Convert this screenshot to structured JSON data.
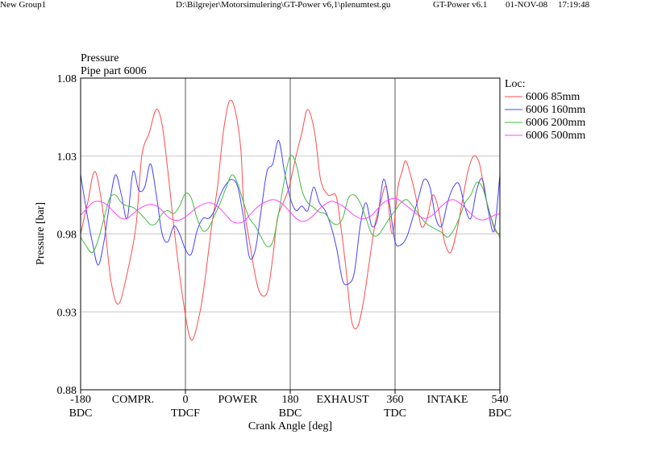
{
  "header": {
    "group": "New Group1",
    "file": "D:\\Bilgrejer\\Motorsimulering\\GT-Power v6,1\\plenumtest.gu",
    "app": "GT-Power v6.1",
    "date": "01-NOV-08",
    "time": "17:19:48"
  },
  "chart_data": {
    "type": "line",
    "title": "Pressure",
    "subtitle": "Pipe part 6006",
    "xlabel": "Crank Angle [deg]",
    "ylabel": "Pressure [bar]",
    "xlim": [
      -180,
      540
    ],
    "ylim": [
      0.88,
      1.08
    ],
    "grid": true,
    "legend_title": "Loc:",
    "legend_position": "right",
    "y_ticks": [
      "1.08",
      "1.03",
      "0.98",
      "0.93",
      "0.88"
    ],
    "x_ticks": [
      {
        "x": -180,
        "value": "-180",
        "sub": "BDC"
      },
      {
        "x": 0,
        "value": "0",
        "sub": "TDCF"
      },
      {
        "x": 180,
        "value": "180",
        "sub": "BDC"
      },
      {
        "x": 360,
        "value": "360",
        "sub": "TDC"
      },
      {
        "x": 540,
        "value": "540",
        "sub": "BDC"
      }
    ],
    "stroke_labels": [
      {
        "x": -90,
        "text": "COMPR."
      },
      {
        "x": 90,
        "text": "POWER"
      },
      {
        "x": 270,
        "text": "EXHAUST"
      },
      {
        "x": 450,
        "text": "INTAKE"
      }
    ],
    "series": [
      {
        "name": "6006 85mm",
        "color": "#ff4c4c",
        "x": [
          -180,
          -168,
          -155,
          -140,
          -128,
          -115,
          -100,
          -85,
          -75,
          -62,
          -50,
          -40,
          -30,
          -20,
          -5,
          10,
          25,
          35,
          45,
          55,
          65,
          75,
          85,
          95,
          100,
          110,
          125,
          140,
          150,
          158,
          168,
          178,
          190,
          200,
          210,
          222,
          232,
          245,
          258,
          265,
          275,
          285,
          295,
          305,
          315,
          325,
          335,
          345,
          355,
          365,
          372,
          378,
          385,
          395,
          405,
          415,
          425,
          435,
          445,
          455,
          465,
          475,
          485,
          495,
          505,
          515,
          525,
          532,
          540
        ],
        "y": [
          0.98,
          1.0,
          1.02,
          0.99,
          0.95,
          0.935,
          0.955,
          0.985,
          1.03,
          1.045,
          1.06,
          1.05,
          1.02,
          0.985,
          0.94,
          0.912,
          0.93,
          0.955,
          0.985,
          1.01,
          1.045,
          1.065,
          1.06,
          1.035,
          1.0,
          0.975,
          0.945,
          0.942,
          0.965,
          0.99,
          1.0,
          1.01,
          1.03,
          1.045,
          1.06,
          1.045,
          1.015,
          1.005,
          1.005,
          0.99,
          0.96,
          0.925,
          0.92,
          0.935,
          0.96,
          0.985,
          1.0,
          1.01,
          0.98,
          1.01,
          1.02,
          1.027,
          1.02,
          1.005,
          0.985,
          0.99,
          1.005,
          0.995,
          0.975,
          0.968,
          0.98,
          1.0,
          1.02,
          1.03,
          1.025,
          1.005,
          0.99,
          0.982,
          0.98
        ]
      },
      {
        "name": "6006 160mm",
        "color": "#4444ff",
        "x": [
          -180,
          -170,
          -160,
          -150,
          -140,
          -130,
          -120,
          -110,
          -100,
          -90,
          -80,
          -70,
          -60,
          -50,
          -40,
          -30,
          -20,
          -10,
          0,
          10,
          20,
          30,
          40,
          50,
          60,
          70,
          80,
          90,
          100,
          110,
          120,
          130,
          140,
          150,
          160,
          170,
          180,
          190,
          200,
          210,
          220,
          230,
          240,
          250,
          260,
          270,
          280,
          290,
          300,
          310,
          320,
          330,
          340,
          350,
          360,
          370,
          380,
          390,
          400,
          410,
          420,
          430,
          440,
          450,
          460,
          470,
          480,
          490,
          500,
          510,
          520,
          530,
          540
        ],
        "y": [
          1.018,
          0.995,
          0.975,
          0.96,
          0.975,
          1.0,
          1.018,
          1.005,
          0.99,
          1.02,
          1.008,
          1.01,
          1.025,
          1.005,
          0.98,
          0.975,
          0.985,
          0.98,
          0.97,
          0.967,
          0.982,
          0.99,
          0.99,
          0.995,
          1.005,
          1.012,
          1.015,
          1.01,
          0.99,
          0.965,
          0.97,
          0.995,
          1.02,
          1.025,
          1.04,
          1.02,
          1.003,
          0.995,
          0.998,
          0.995,
          1.01,
          1.0,
          0.995,
          0.985,
          0.97,
          0.95,
          0.948,
          0.955,
          0.985,
          1.0,
          0.985,
          0.99,
          1.015,
          1.0,
          0.975,
          0.973,
          0.978,
          0.99,
          1.003,
          1.015,
          1.01,
          0.99,
          0.985,
          1.0,
          1.01,
          1.012,
          0.997,
          0.99,
          1.008,
          1.015,
          0.995,
          0.982,
          1.018
        ]
      },
      {
        "name": "6006 200mm",
        "color": "#44bb44",
        "x": [
          -180,
          -170,
          -160,
          -150,
          -140,
          -130,
          -120,
          -110,
          -100,
          -90,
          -80,
          -70,
          -60,
          -50,
          -40,
          -30,
          -20,
          -10,
          0,
          10,
          20,
          30,
          40,
          50,
          60,
          70,
          80,
          90,
          100,
          110,
          120,
          130,
          140,
          150,
          160,
          170,
          180,
          190,
          200,
          210,
          220,
          230,
          240,
          250,
          260,
          270,
          280,
          290,
          300,
          310,
          320,
          330,
          340,
          350,
          360,
          370,
          380,
          390,
          400,
          410,
          420,
          430,
          440,
          450,
          460,
          470,
          480,
          490,
          500,
          510,
          520,
          530,
          540
        ],
        "y": [
          0.978,
          0.972,
          0.968,
          0.976,
          0.99,
          1.003,
          1.005,
          1.0,
          0.998,
          0.997,
          0.994,
          0.99,
          0.986,
          0.987,
          0.993,
          0.995,
          0.993,
          0.998,
          1.006,
          1.003,
          0.99,
          0.982,
          0.984,
          0.992,
          1.0,
          1.01,
          1.018,
          1.012,
          1.0,
          0.99,
          0.985,
          0.978,
          0.972,
          0.975,
          0.993,
          1.015,
          1.03,
          1.025,
          1.008,
          1.0,
          0.997,
          0.994,
          0.993,
          0.988,
          0.986,
          0.99,
          1.003,
          1.005,
          1.0,
          0.99,
          0.98,
          0.979,
          0.984,
          0.99,
          0.995,
          1.0,
          1.002,
          0.998,
          0.993,
          0.988,
          0.985,
          0.983,
          0.981,
          0.978,
          0.982,
          0.99,
          1.0,
          1.005,
          1.013,
          1.01,
          0.997,
          0.985,
          0.978
        ]
      },
      {
        "name": "6006 500mm",
        "color": "#ff44ff",
        "x": [
          -180,
          -170,
          -160,
          -150,
          -140,
          -130,
          -120,
          -110,
          -100,
          -90,
          -80,
          -70,
          -60,
          -50,
          -40,
          -30,
          -20,
          -10,
          0,
          10,
          20,
          30,
          40,
          50,
          60,
          70,
          80,
          90,
          100,
          110,
          120,
          130,
          140,
          150,
          160,
          170,
          180,
          190,
          200,
          210,
          220,
          230,
          240,
          250,
          260,
          270,
          280,
          290,
          300,
          310,
          320,
          330,
          340,
          350,
          360,
          370,
          380,
          390,
          400,
          410,
          420,
          430,
          440,
          450,
          460,
          470,
          480,
          490,
          500,
          510,
          520,
          530,
          540
        ],
        "y": [
          0.992,
          0.996,
          1.0,
          1.001,
          1.0,
          0.997,
          0.993,
          0.99,
          0.99,
          0.993,
          0.996,
          0.998,
          0.999,
          0.998,
          0.995,
          0.991,
          0.989,
          0.989,
          0.991,
          0.994,
          0.997,
          0.999,
          1.0,
          0.999,
          0.996,
          0.992,
          0.988,
          0.987,
          0.988,
          0.992,
          0.996,
          0.999,
          1.001,
          1.002,
          1.001,
          0.998,
          0.994,
          0.99,
          0.988,
          0.989,
          0.992,
          0.996,
          0.999,
          1.001,
          1.0,
          0.998,
          0.995,
          0.992,
          0.99,
          0.99,
          0.992,
          0.996,
          1.0,
          1.002,
          1.003,
          1.001,
          0.998,
          0.995,
          0.992,
          0.99,
          0.991,
          0.994,
          0.998,
          1.001,
          1.002,
          1.0,
          0.997,
          0.993,
          0.99,
          0.989,
          0.99,
          0.992,
          0.993
        ]
      }
    ]
  }
}
